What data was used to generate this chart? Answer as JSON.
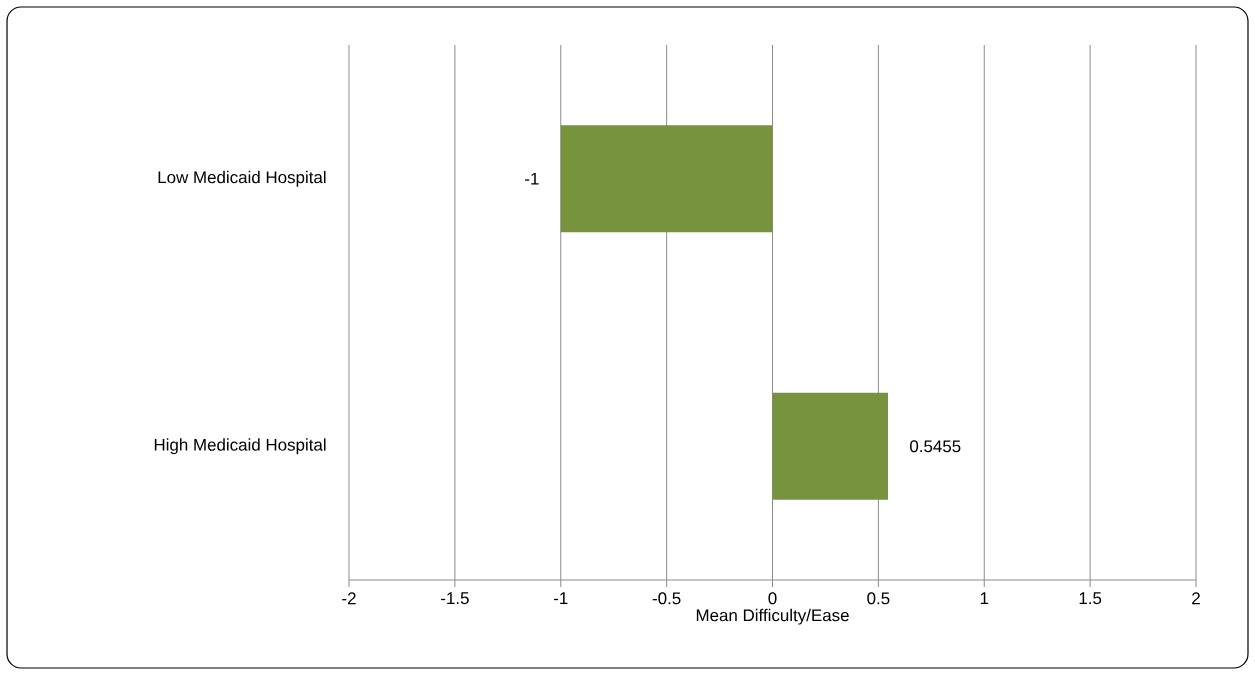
{
  "chart_data": {
    "type": "bar",
    "orientation": "horizontal",
    "xlabel": "Mean Difficulty/Ease",
    "categories": [
      "Low Medicaid Hospital",
      "High Medicaid Hospital"
    ],
    "values": [
      -1,
      0.5455
    ],
    "color": "#77933c",
    "data_labels": true,
    "xlim": [
      -2,
      2
    ],
    "xticks": [
      -2,
      -1.5,
      -1,
      -0.5,
      0,
      0.5,
      1,
      1.5,
      2
    ],
    "grid": "x"
  }
}
